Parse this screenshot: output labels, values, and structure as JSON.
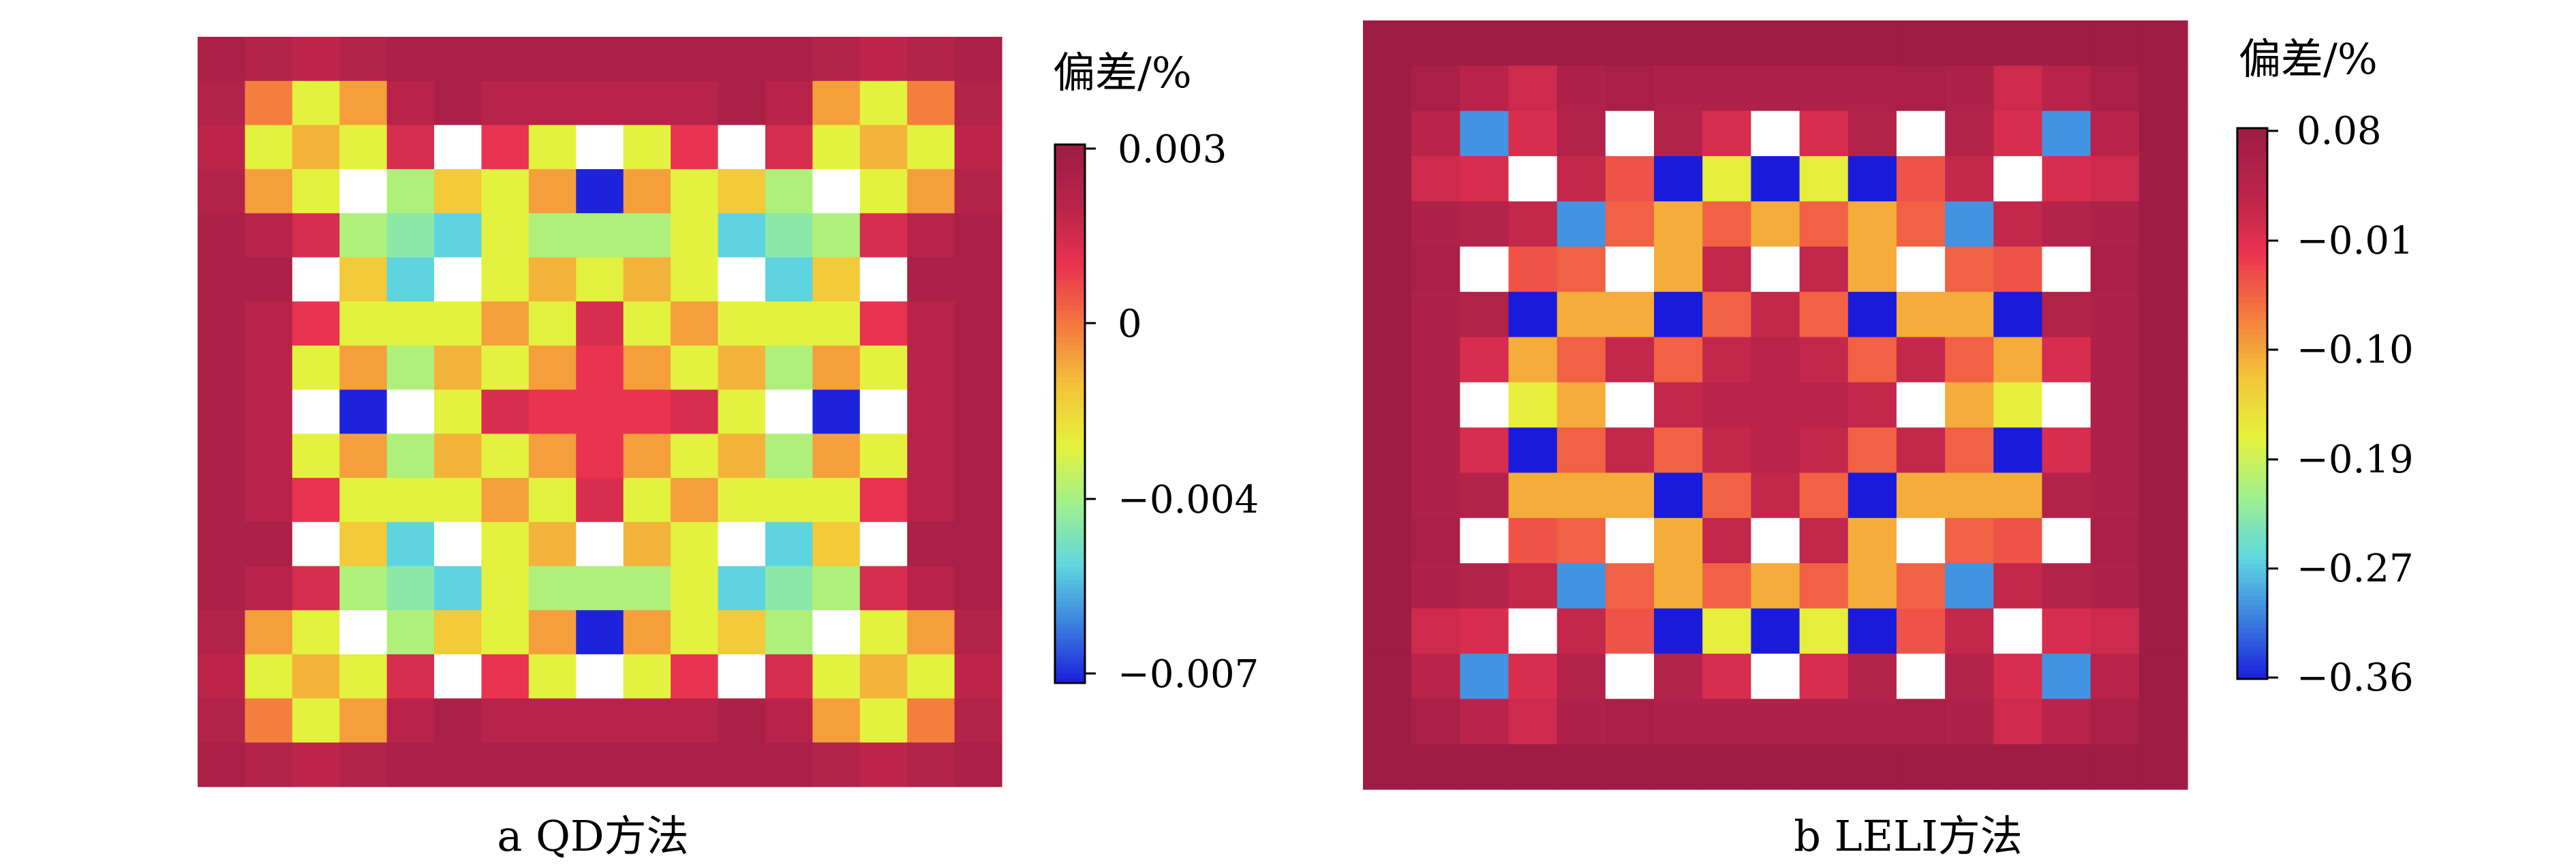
{
  "chart_data": [
    {
      "type": "heatmap",
      "title": "",
      "caption": "a  QD方法",
      "colorbar_title": "偏差/%",
      "colorbar_ticks": [
        "0.003",
        "0",
        "−0.004",
        "−0.007"
      ],
      "colorbar_tick_values": [
        0.003,
        0.0,
        -0.004,
        -0.007
      ],
      "vmin": -0.007,
      "vmax": 0.003,
      "grid_size": [
        17,
        17
      ],
      "values": [
        [
          0.0025,
          0.0021,
          0.0018,
          0.0021,
          0.0025,
          0.0025,
          0.0025,
          0.0025,
          0.0025,
          0.0025,
          0.0025,
          0.0025,
          0.0025,
          0.0021,
          0.0018,
          0.0021,
          0.0025
        ],
        [
          0.0021,
          -0.0004,
          -0.0026,
          -0.0009,
          0.0019,
          0.0025,
          0.0019,
          0.0019,
          0.0019,
          0.0019,
          0.0019,
          0.0025,
          0.0019,
          -0.0009,
          -0.0026,
          -0.0004,
          0.0021
        ],
        [
          0.0018,
          -0.0026,
          -0.0012,
          -0.0026,
          0.0012,
          null,
          0.0008,
          -0.0026,
          null,
          -0.0026,
          0.0008,
          null,
          0.0012,
          -0.0026,
          -0.0012,
          -0.0026,
          0.0018
        ],
        [
          0.0021,
          -0.0009,
          -0.0026,
          null,
          -0.0034,
          -0.0016,
          -0.0026,
          -0.0009,
          -0.0069,
          -0.0009,
          -0.0026,
          -0.0016,
          -0.0034,
          null,
          -0.0026,
          -0.0009,
          0.0021
        ],
        [
          0.0025,
          0.0019,
          0.0012,
          -0.0034,
          -0.004,
          -0.0048,
          -0.0026,
          -0.0034,
          -0.0034,
          -0.0034,
          -0.0026,
          -0.0048,
          -0.004,
          -0.0034,
          0.0012,
          0.0019,
          0.0025
        ],
        [
          0.0025,
          0.0025,
          null,
          -0.0016,
          -0.0048,
          null,
          -0.0026,
          -0.0012,
          -0.0026,
          -0.0012,
          -0.0026,
          null,
          -0.0048,
          -0.0016,
          null,
          0.0025,
          0.0025
        ],
        [
          0.0025,
          0.0019,
          0.0008,
          -0.0026,
          -0.0026,
          -0.0026,
          -0.0009,
          -0.0026,
          0.0012,
          -0.0026,
          -0.0009,
          -0.0026,
          -0.0026,
          -0.0026,
          0.0008,
          0.0019,
          0.0025
        ],
        [
          0.0025,
          0.0019,
          -0.0026,
          -0.0009,
          -0.0034,
          -0.0012,
          -0.0026,
          -0.0009,
          0.0008,
          -0.0009,
          -0.0026,
          -0.0012,
          -0.0034,
          -0.0009,
          -0.0026,
          0.0019,
          0.0025
        ],
        [
          0.0025,
          0.0019,
          null,
          -0.0069,
          null,
          -0.0026,
          0.0012,
          0.0008,
          0.0008,
          0.0008,
          0.0012,
          -0.0026,
          null,
          -0.0069,
          null,
          0.0019,
          0.0025
        ],
        [
          0.0025,
          0.0019,
          -0.0026,
          -0.0009,
          -0.0034,
          -0.0012,
          -0.0026,
          -0.0009,
          0.0008,
          -0.0009,
          -0.0026,
          -0.0012,
          -0.0034,
          -0.0009,
          -0.0026,
          0.0019,
          0.0025
        ],
        [
          0.0025,
          0.0019,
          0.0008,
          -0.0026,
          -0.0026,
          -0.0026,
          -0.0009,
          -0.0026,
          0.0012,
          -0.0026,
          -0.0009,
          -0.0026,
          -0.0026,
          -0.0026,
          0.0008,
          0.0019,
          0.0025
        ],
        [
          0.0025,
          0.0025,
          null,
          -0.0016,
          -0.0048,
          null,
          -0.0026,
          -0.0012,
          null,
          -0.0012,
          -0.0026,
          null,
          -0.0048,
          -0.0016,
          null,
          0.0025,
          0.0025
        ],
        [
          0.0025,
          0.0019,
          0.0012,
          -0.0034,
          -0.004,
          -0.0048,
          -0.0026,
          -0.0034,
          -0.0034,
          -0.0034,
          -0.0026,
          -0.0048,
          -0.004,
          -0.0034,
          0.0012,
          0.0019,
          0.0025
        ],
        [
          0.0021,
          -0.0009,
          -0.0026,
          null,
          -0.0034,
          -0.0016,
          -0.0026,
          -0.0009,
          -0.0069,
          -0.0009,
          -0.0026,
          -0.0016,
          -0.0034,
          null,
          -0.0026,
          -0.0009,
          0.0021
        ],
        [
          0.0018,
          -0.0026,
          -0.0012,
          -0.0026,
          0.0012,
          null,
          0.0008,
          -0.0026,
          null,
          -0.0026,
          0.0008,
          null,
          0.0012,
          -0.0026,
          -0.0012,
          -0.0026,
          0.0018
        ],
        [
          0.0021,
          -0.0004,
          -0.0026,
          -0.0009,
          0.0019,
          0.0025,
          0.0019,
          0.0019,
          0.0019,
          0.0019,
          0.0019,
          0.0025,
          0.0019,
          -0.0009,
          -0.0026,
          -0.0004,
          0.0021
        ],
        [
          0.0025,
          0.0021,
          0.0018,
          0.0021,
          0.0025,
          0.0025,
          0.0025,
          0.0025,
          0.0025,
          0.0025,
          0.0025,
          0.0025,
          0.0025,
          0.0021,
          0.0018,
          0.0021,
          0.0025
        ]
      ]
    },
    {
      "type": "heatmap",
      "title": "",
      "caption": "b  LELI方法",
      "colorbar_title": "偏差/%",
      "colorbar_ticks": [
        "0.08",
        "−0.01",
        "−0.10",
        "−0.19",
        "−0.27",
        "−0.36"
      ],
      "colorbar_tick_values": [
        0.08,
        -0.01,
        -0.1,
        -0.19,
        -0.27,
        -0.36
      ],
      "vmin": -0.36,
      "vmax": 0.08,
      "grid_size": [
        17,
        17
      ],
      "values": [
        [
          0.08,
          0.08,
          0.08,
          0.08,
          0.08,
          0.08,
          0.08,
          0.08,
          0.08,
          0.08,
          0.08,
          0.08,
          0.08,
          0.08,
          0.08,
          0.08,
          0.08
        ],
        [
          0.08,
          0.06,
          0.03,
          0.01,
          0.05,
          0.06,
          0.05,
          0.05,
          0.05,
          0.05,
          0.05,
          0.06,
          0.05,
          0.01,
          0.03,
          0.06,
          0.08
        ],
        [
          0.08,
          0.03,
          -0.3,
          0.0,
          0.04,
          null,
          0.04,
          0.0,
          null,
          0.0,
          0.04,
          null,
          0.04,
          0.0,
          -0.3,
          0.03,
          0.08
        ],
        [
          0.08,
          0.01,
          0.0,
          null,
          0.02,
          -0.04,
          -0.36,
          -0.16,
          -0.36,
          -0.16,
          -0.36,
          -0.04,
          0.02,
          null,
          0.0,
          0.01,
          0.08
        ],
        [
          0.08,
          0.05,
          0.04,
          0.02,
          -0.3,
          -0.05,
          -0.1,
          -0.05,
          -0.1,
          -0.05,
          -0.1,
          -0.05,
          -0.3,
          0.02,
          0.04,
          0.05,
          0.08
        ],
        [
          0.08,
          0.06,
          null,
          -0.04,
          -0.05,
          null,
          -0.1,
          0.02,
          null,
          0.02,
          -0.1,
          null,
          -0.05,
          -0.04,
          null,
          0.06,
          0.08
        ],
        [
          0.08,
          0.05,
          0.04,
          -0.36,
          -0.1,
          -0.1,
          -0.36,
          -0.05,
          0.02,
          -0.05,
          -0.36,
          -0.1,
          -0.1,
          -0.36,
          0.04,
          0.05,
          0.08
        ],
        [
          0.08,
          0.05,
          0.0,
          -0.1,
          -0.05,
          0.02,
          -0.05,
          0.02,
          0.03,
          0.02,
          -0.05,
          0.02,
          -0.05,
          -0.1,
          0.0,
          0.05,
          0.08
        ],
        [
          0.08,
          0.05,
          null,
          -0.16,
          -0.1,
          null,
          0.02,
          0.03,
          0.03,
          0.03,
          0.02,
          null,
          -0.1,
          -0.16,
          null,
          0.05,
          0.08
        ],
        [
          0.08,
          0.05,
          0.0,
          -0.36,
          -0.05,
          0.02,
          -0.05,
          0.02,
          0.03,
          0.02,
          -0.05,
          0.02,
          -0.05,
          -0.36,
          0.0,
          0.05,
          0.08
        ],
        [
          0.08,
          0.05,
          0.04,
          -0.1,
          -0.1,
          -0.1,
          -0.36,
          -0.05,
          0.02,
          -0.05,
          -0.36,
          -0.1,
          -0.1,
          -0.1,
          0.04,
          0.05,
          0.08
        ],
        [
          0.08,
          0.06,
          null,
          -0.04,
          -0.05,
          null,
          -0.1,
          0.02,
          null,
          0.02,
          -0.1,
          null,
          -0.05,
          -0.04,
          null,
          0.06,
          0.08
        ],
        [
          0.08,
          0.05,
          0.04,
          0.02,
          -0.3,
          -0.05,
          -0.1,
          -0.05,
          -0.1,
          -0.05,
          -0.1,
          -0.05,
          -0.3,
          0.02,
          0.04,
          0.05,
          0.08
        ],
        [
          0.08,
          0.01,
          0.0,
          null,
          0.02,
          -0.04,
          -0.36,
          -0.16,
          -0.36,
          -0.16,
          -0.36,
          -0.04,
          0.02,
          null,
          0.0,
          0.01,
          0.08
        ],
        [
          0.08,
          0.03,
          -0.3,
          0.0,
          0.04,
          null,
          0.04,
          0.0,
          null,
          0.0,
          0.04,
          null,
          0.04,
          0.0,
          -0.3,
          0.03,
          0.08
        ],
        [
          0.08,
          0.06,
          0.03,
          0.01,
          0.05,
          0.06,
          0.05,
          0.05,
          0.05,
          0.05,
          0.05,
          0.06,
          0.05,
          0.01,
          0.03,
          0.06,
          0.08
        ],
        [
          0.08,
          0.08,
          0.08,
          0.08,
          0.08,
          0.08,
          0.08,
          0.08,
          0.08,
          0.08,
          0.08,
          0.08,
          0.08,
          0.08,
          0.08,
          0.08,
          0.08
        ]
      ]
    }
  ],
  "colormap": [
    "#1a1adb",
    "#3a7fe0",
    "#5fd6e0",
    "#9ef08f",
    "#e6f23b",
    "#f4c33a",
    "#f47a3e",
    "#ea3350",
    "#b8234a",
    "#9f1d44"
  ]
}
